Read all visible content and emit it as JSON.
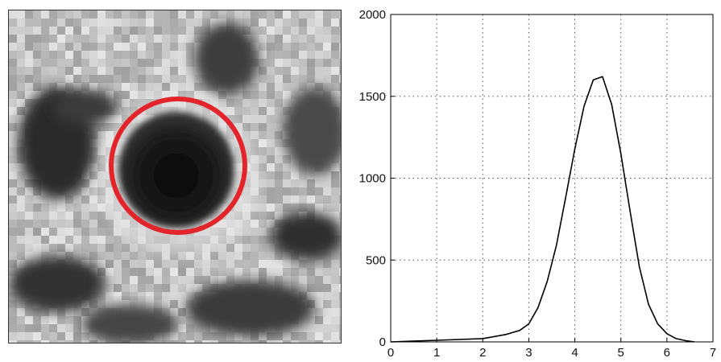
{
  "image_panel": {
    "highlight_color": "#e3242b"
  },
  "chart_data": {
    "type": "line",
    "title": "",
    "xlabel": "",
    "ylabel": "",
    "xlim": [
      0,
      7
    ],
    "ylim": [
      0,
      2000
    ],
    "xticks": [
      0,
      1,
      2,
      3,
      4,
      5,
      6,
      7
    ],
    "yticks": [
      0,
      500,
      1000,
      1500,
      2000
    ],
    "grid": true,
    "grid_style": "dotted",
    "line_color": "#000000",
    "series": [
      {
        "x": [
          0,
          1,
          2,
          2.5,
          2.8,
          3.0,
          3.2,
          3.4,
          3.6,
          3.8,
          4.0,
          4.2,
          4.4,
          4.6,
          4.8,
          5.0,
          5.2,
          5.4,
          5.6,
          5.8,
          6.0,
          6.2,
          6.4,
          6.6
        ],
        "y": [
          0,
          10,
          20,
          45,
          70,
          110,
          210,
          370,
          590,
          880,
          1180,
          1440,
          1600,
          1620,
          1450,
          1150,
          800,
          460,
          230,
          110,
          50,
          20,
          8,
          0
        ]
      }
    ]
  }
}
